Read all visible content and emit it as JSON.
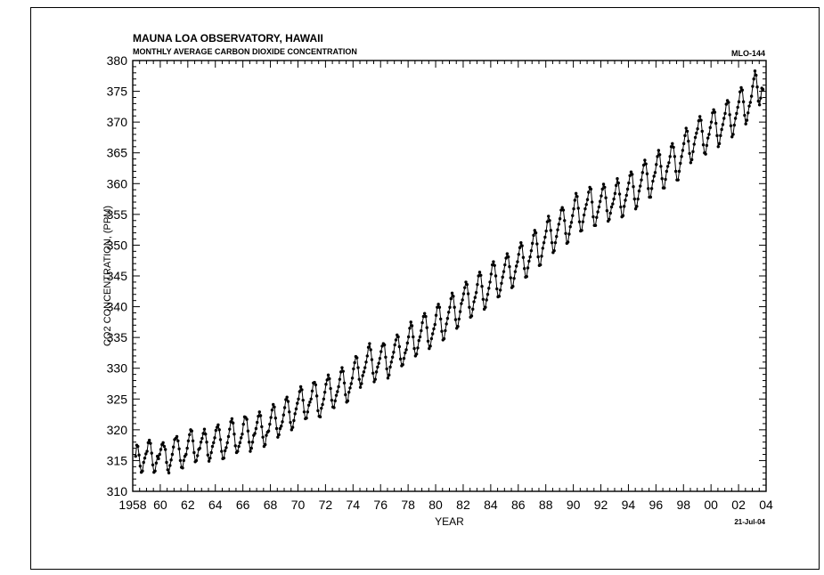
{
  "chart_data": {
    "type": "line",
    "title": "MAUNA LOA OBSERVATORY, HAWAII",
    "subtitle": "MONTHLY AVERAGE CARBON DIOXIDE CONCENTRATION",
    "station_code": "MLO-144",
    "date_stamp": "21-Jul-04",
    "xlabel": "YEAR",
    "ylabel": "CO2 CONCENTRATION, (PPM)",
    "xlim": [
      1958,
      2004
    ],
    "ylim": [
      310,
      380
    ],
    "x_ticks": [
      1958,
      1960,
      1962,
      1964,
      1966,
      1968,
      1970,
      1972,
      1974,
      1976,
      1978,
      1980,
      1982,
      1984,
      1986,
      1988,
      1990,
      1992,
      1994,
      1996,
      1998,
      2000,
      2002,
      2004
    ],
    "x_tick_labels": [
      "1958",
      "60",
      "62",
      "64",
      "66",
      "68",
      "70",
      "72",
      "74",
      "76",
      "78",
      "80",
      "82",
      "84",
      "86",
      "88",
      "90",
      "92",
      "94",
      "96",
      "98",
      "00",
      "02",
      "04"
    ],
    "y_ticks": [
      310,
      315,
      320,
      325,
      330,
      335,
      340,
      345,
      350,
      355,
      360,
      365,
      370,
      375,
      380
    ],
    "y_tick_labels": [
      "310",
      "315",
      "320",
      "325",
      "330",
      "335",
      "340",
      "345",
      "350",
      "355",
      "360",
      "365",
      "370",
      "375",
      "380"
    ],
    "grid": false,
    "marker": "circle",
    "series": [
      {
        "x_start": 1958.208,
        "x_step": 0.0833,
        "values": [
          315.7,
          317.5,
          317.3,
          315.9,
          314.1,
          313.1,
          313.3,
          314.7,
          315.4,
          316.1,
          316.5,
          317.9,
          318.3,
          317.8,
          316.2,
          314.3,
          313.1,
          313.3,
          314.6,
          315.7,
          315.3,
          316.0,
          316.8,
          317.6,
          317.9,
          317.3,
          316.8,
          314.7,
          313.5,
          313.0,
          314.2,
          315.1,
          316.0,
          317.2,
          318.4,
          318.6,
          318.9,
          318.2,
          316.9,
          315.0,
          313.9,
          313.8,
          315.0,
          315.7,
          316.0,
          317.0,
          318.2,
          319.2,
          320.0,
          319.8,
          318.2,
          316.3,
          314.8,
          315.0,
          315.8,
          316.8,
          317.0,
          318.0,
          318.6,
          319.4,
          320.1,
          319.3,
          318.0,
          315.9,
          314.9,
          315.4,
          316.3,
          317.3,
          317.9,
          318.7,
          319.9,
          320.4,
          320.8,
          320.0,
          318.4,
          316.5,
          315.3,
          315.4,
          316.6,
          317.1,
          317.9,
          318.9,
          320.1,
          321.3,
          321.8,
          321.1,
          319.3,
          317.4,
          316.3,
          316.5,
          317.3,
          317.9,
          318.7,
          319.3,
          320.9,
          322.1,
          322.0,
          321.7,
          319.8,
          318.0,
          316.5,
          317.0,
          318.0,
          319.1,
          319.4,
          320.2,
          321.2,
          322.2,
          322.9,
          322.3,
          320.5,
          318.8,
          317.3,
          317.6,
          319.1,
          319.6,
          319.8,
          320.9,
          322.0,
          323.2,
          324.1,
          323.7,
          321.9,
          320.2,
          318.8,
          319.2,
          320.2,
          320.6,
          321.3,
          322.4,
          323.6,
          324.9,
          325.3,
          324.6,
          322.9,
          321.2,
          320.0,
          320.4,
          321.5,
          322.6,
          323.4,
          324.3,
          325.0,
          326.2,
          327.0,
          326.5,
          324.8,
          322.9,
          321.8,
          321.9,
          322.9,
          324.0,
          324.5,
          325.0,
          326.3,
          327.6,
          327.7,
          327.3,
          325.5,
          323.1,
          322.2,
          322.1,
          323.5,
          324.1,
          325.0,
          326.1,
          327.4,
          328.1,
          328.9,
          328.3,
          326.7,
          324.8,
          323.7,
          323.6,
          324.7,
          325.6,
          326.2,
          327.0,
          328.2,
          329.4,
          330.1,
          329.5,
          327.6,
          325.7,
          324.5,
          324.7,
          326.1,
          326.8,
          327.5,
          328.4,
          329.9,
          330.9,
          331.9,
          331.7,
          330.1,
          328.2,
          326.9,
          327.5,
          328.8,
          329.4,
          330.1,
          331.0,
          332.0,
          333.4,
          334.0,
          333.0,
          331.4,
          329.2,
          327.8,
          328.2,
          329.4,
          330.2,
          330.8,
          331.6,
          332.7,
          333.6,
          334.0,
          333.8,
          331.8,
          329.9,
          328.4,
          328.9,
          330.2,
          331.0,
          331.8,
          332.6,
          333.8,
          334.6,
          335.4,
          335.1,
          333.5,
          331.5,
          330.4,
          330.6,
          331.6,
          332.5,
          333.0,
          334.1,
          335.1,
          336.5,
          337.5,
          336.9,
          335.1,
          333.2,
          332.0,
          332.3,
          333.3,
          334.5,
          335.1,
          336.1,
          337.4,
          338.4,
          338.9,
          338.4,
          336.6,
          334.4,
          333.2,
          333.6,
          334.8,
          335.6,
          336.4,
          337.1,
          338.6,
          339.9,
          340.4,
          339.9,
          338.0,
          336.0,
          334.6,
          334.8,
          336.1,
          337.2,
          338.1,
          339.1,
          339.9,
          341.3,
          342.2,
          341.7,
          339.9,
          337.9,
          336.5,
          336.8,
          338.0,
          339.2,
          340.5,
          341.1,
          342.1,
          343.1,
          344.0,
          343.6,
          342.1,
          339.9,
          338.3,
          338.5,
          339.6,
          340.8,
          341.5,
          342.3,
          343.6,
          345.0,
          345.6,
          345.1,
          343.3,
          341.2,
          339.6,
          339.9,
          341.1,
          342.0,
          343.0,
          344.0,
          345.3,
          346.8,
          347.3,
          346.7,
          345.0,
          342.9,
          341.6,
          341.7,
          342.7,
          343.8,
          344.8,
          345.7,
          346.8,
          347.9,
          348.6,
          348.1,
          346.5,
          344.7,
          343.1,
          343.3,
          344.6,
          345.7,
          346.6,
          347.3,
          348.5,
          349.6,
          350.4,
          349.9,
          348.0,
          346.2,
          344.8,
          344.9,
          346.3,
          347.4,
          348.1,
          349.1,
          350.3,
          351.6,
          352.4,
          352.0,
          350.2,
          348.1,
          346.7,
          346.8,
          348.2,
          349.5,
          350.4,
          351.3,
          352.3,
          353.8,
          354.7,
          354.0,
          352.4,
          350.4,
          348.8,
          349.1,
          350.4,
          351.4,
          352.5,
          353.4,
          354.3,
          355.7,
          356.1,
          355.7,
          354.0,
          351.9,
          350.3,
          350.5,
          351.8,
          353.0,
          353.7,
          354.8,
          355.9,
          357.3,
          358.4,
          357.9,
          356.0,
          353.8,
          352.3,
          352.4,
          353.8,
          354.9,
          355.9,
          356.6,
          357.4,
          358.6,
          359.4,
          359.1,
          357.0,
          354.6,
          353.2,
          353.2,
          354.5,
          355.4,
          356.2,
          357.1,
          358.0,
          359.1,
          359.9,
          359.4,
          357.7,
          355.6,
          353.9,
          354.2,
          355.2,
          356.2,
          356.7,
          357.5,
          358.4,
          359.7,
          360.8,
          360.1,
          358.3,
          356.2,
          354.6,
          354.8,
          356.3,
          357.3,
          358.1,
          359.1,
          360.1,
          361.3,
          361.9,
          361.5,
          359.5,
          357.5,
          355.9,
          356.3,
          357.5,
          358.8,
          359.6,
          360.6,
          361.8,
          363.0,
          363.8,
          363.2,
          361.6,
          359.2,
          357.8,
          357.8,
          359.2,
          360.4,
          361.2,
          361.8,
          363.1,
          364.4,
          365.4,
          364.7,
          362.8,
          360.8,
          359.3,
          359.3,
          360.7,
          362.0,
          362.8,
          363.4,
          364.4,
          366.0,
          366.5,
          365.9,
          364.4,
          362.0,
          360.6,
          360.6,
          362.0,
          363.3,
          364.4,
          365.4,
          366.5,
          367.8,
          369.0,
          368.5,
          366.9,
          364.9,
          363.4,
          363.9,
          365.2,
          366.4,
          367.5,
          368.2,
          368.9,
          370.2,
          370.9,
          370.3,
          368.5,
          366.3,
          365.0,
          364.8,
          366.2,
          367.4,
          368.0,
          369.1,
          370.0,
          371.5,
          372.0,
          371.6,
          369.8,
          367.8,
          366.0,
          366.5,
          367.8,
          368.8,
          369.6,
          370.6,
          371.4,
          372.9,
          373.5,
          373.2,
          371.2,
          369.4,
          367.6,
          368.0,
          369.5,
          370.6,
          371.4,
          372.4,
          373.3,
          374.9,
          375.6,
          375.2,
          373.3,
          371.1,
          369.7,
          370.3,
          371.5,
          372.6,
          373.2,
          374.2,
          375.8,
          377.0,
          378.3,
          377.6,
          375.7,
          373.4,
          372.8,
          373.9,
          375.5,
          375.3
        ]
      }
    ]
  }
}
